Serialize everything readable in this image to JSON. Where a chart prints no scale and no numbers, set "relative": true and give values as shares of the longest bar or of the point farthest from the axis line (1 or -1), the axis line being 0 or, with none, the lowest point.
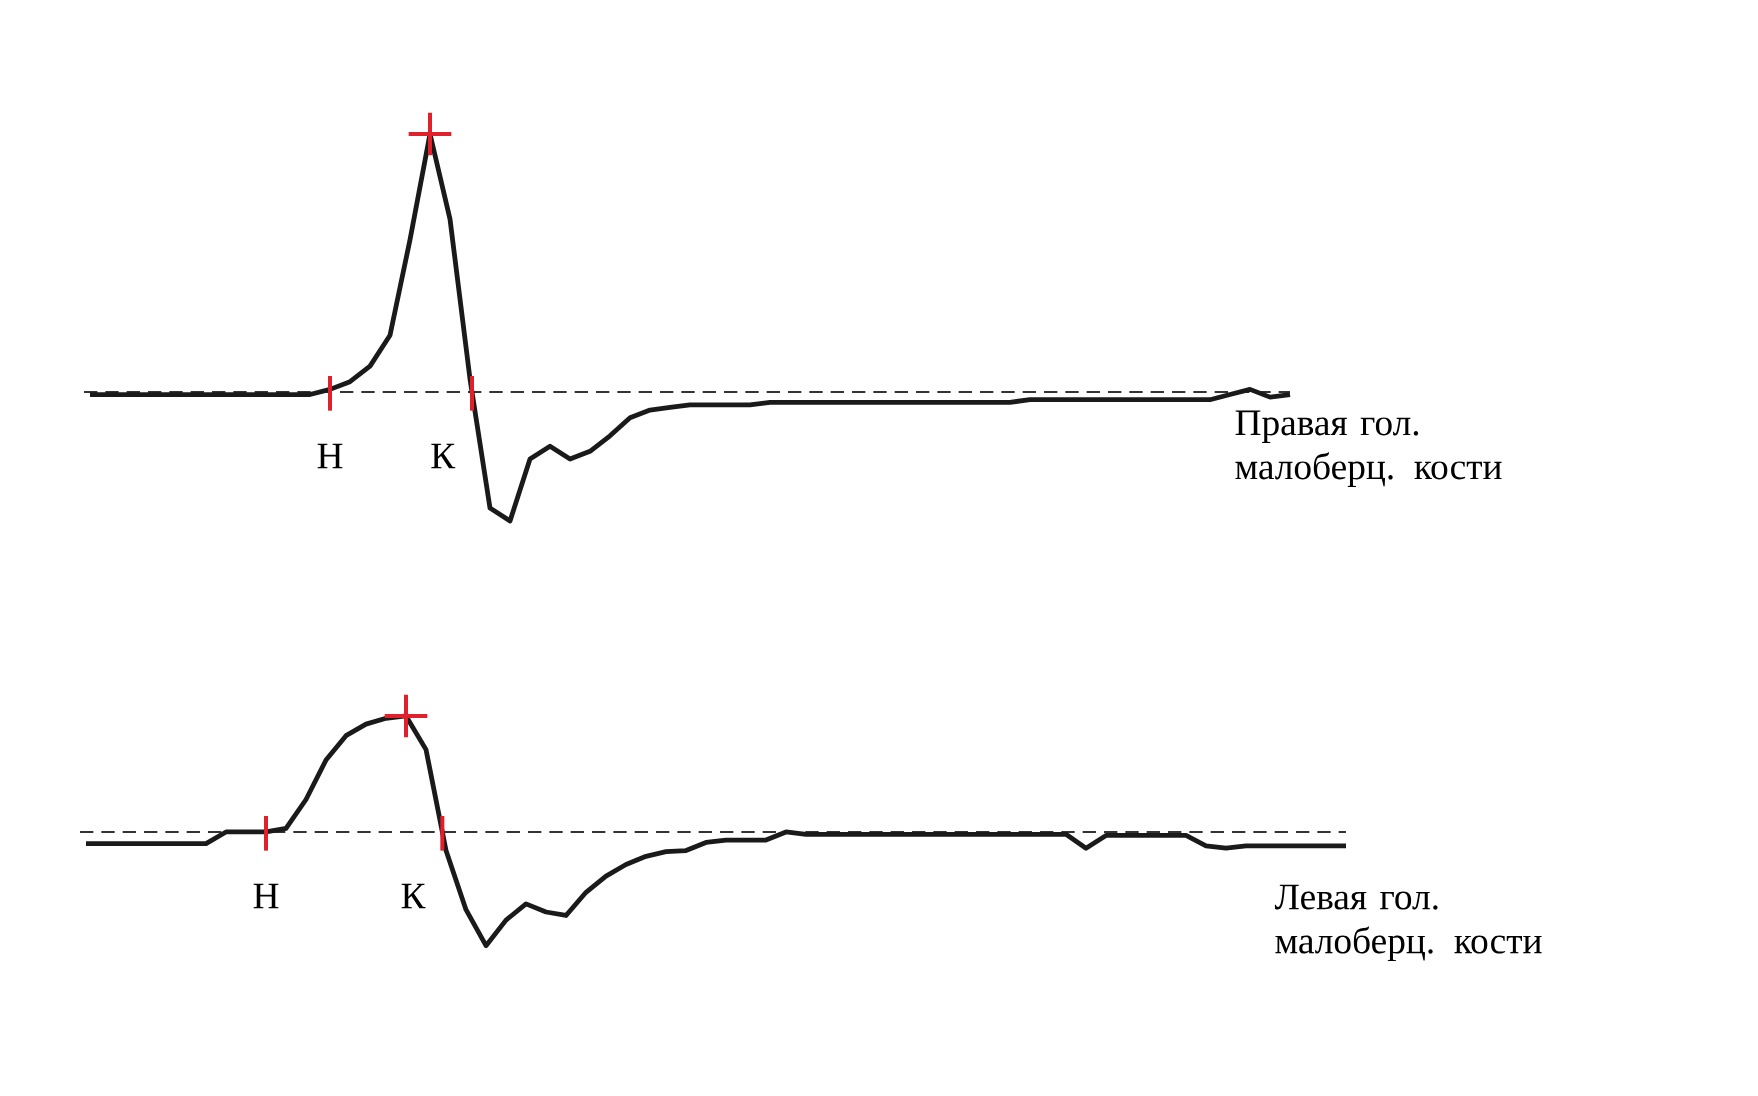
{
  "chart_data": [
    {
      "type": "line",
      "relative": true,
      "categories": [
        null,
        null,
        null,
        null,
        null,
        null,
        null,
        null,
        null,
        null,
        null,
        null,
        null,
        null,
        null,
        null,
        null,
        null,
        null,
        null,
        null,
        null,
        null,
        null,
        null,
        null,
        null,
        null,
        null,
        null,
        null,
        null,
        null,
        null,
        null,
        null,
        null,
        null,
        null,
        null,
        null,
        null,
        null,
        null,
        null,
        null,
        null,
        null,
        null,
        null,
        null,
        null,
        null,
        null,
        null,
        null,
        null,
        null,
        null,
        null,
        null
      ],
      "series": [
        {
          "name": "Правая гол. малоберц. кости",
          "color": "#1a1a1a",
          "values": [
            -0.01,
            -0.01,
            -0.01,
            -0.01,
            -0.01,
            -0.01,
            -0.01,
            -0.01,
            -0.01,
            -0.01,
            -0.01,
            -0.01,
            0.01,
            0.04,
            0.1,
            0.22,
            0.59,
            1.0,
            0.67,
            0.05,
            -0.45,
            -0.5,
            -0.26,
            -0.21,
            -0.26,
            -0.23,
            -0.17,
            -0.1,
            -0.07,
            -0.06,
            -0.05,
            -0.05,
            -0.05,
            -0.05,
            -0.04,
            -0.04,
            -0.04,
            -0.04,
            -0.04,
            -0.04,
            -0.04,
            -0.04,
            -0.04,
            -0.04,
            -0.04,
            -0.04,
            -0.04,
            -0.03,
            -0.03,
            -0.03,
            -0.03,
            -0.03,
            -0.03,
            -0.03,
            -0.03,
            -0.03,
            -0.03,
            -0.01,
            0.01,
            -0.02,
            -0.01
          ]
        }
      ],
      "ref_lines": [
        {
          "axis": "y",
          "value": 0,
          "color": "#333333",
          "line_style": "dashed"
        }
      ],
      "annotations": [
        "Н",
        "К"
      ]
    },
    {
      "type": "line",
      "relative": true,
      "categories": [
        null,
        null,
        null,
        null,
        null,
        null,
        null,
        null,
        null,
        null,
        null,
        null,
        null,
        null,
        null,
        null,
        null,
        null,
        null,
        null,
        null,
        null,
        null,
        null,
        null,
        null,
        null,
        null,
        null,
        null,
        null,
        null,
        null,
        null,
        null,
        null,
        null,
        null,
        null,
        null,
        null,
        null,
        null,
        null,
        null,
        null,
        null,
        null,
        null,
        null,
        null,
        null,
        null,
        null,
        null,
        null,
        null,
        null,
        null,
        null,
        null,
        null,
        null,
        null
      ],
      "series": [
        {
          "name": "Левая гол. малоберц. кости",
          "color": "#1a1a1a",
          "values": [
            -0.1,
            -0.1,
            -0.1,
            -0.1,
            -0.1,
            -0.1,
            -0.1,
            0,
            0,
            0,
            0.03,
            0.28,
            0.62,
            0.83,
            0.93,
            0.98,
            1.0,
            0.71,
            -0.16,
            -0.67,
            -0.98,
            -0.76,
            -0.62,
            -0.69,
            -0.72,
            -0.52,
            -0.38,
            -0.28,
            -0.21,
            -0.17,
            -0.16,
            -0.09,
            -0.07,
            -0.07,
            -0.07,
            0,
            -0.02,
            -0.02,
            -0.02,
            -0.02,
            -0.02,
            -0.02,
            -0.02,
            -0.02,
            -0.02,
            -0.02,
            -0.02,
            -0.02,
            -0.02,
            -0.02,
            -0.14,
            -0.03,
            -0.03,
            -0.03,
            -0.03,
            -0.03,
            -0.12,
            -0.14,
            -0.12,
            -0.12,
            -0.12,
            -0.12,
            -0.12,
            -0.12
          ]
        }
      ],
      "ref_lines": [
        {
          "axis": "y",
          "value": 0,
          "color": "#333333",
          "line_style": "dashed"
        }
      ],
      "annotations": [
        "Н",
        "К"
      ]
    }
  ]
}
